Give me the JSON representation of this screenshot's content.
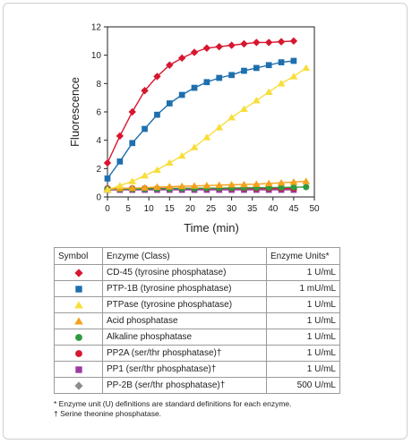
{
  "chart_data": {
    "type": "line",
    "xlabel": "Time (min)",
    "ylabel": "Fluorescence",
    "xlim": [
      0,
      50
    ],
    "ylim": [
      0,
      12
    ],
    "xticks": [
      0,
      5,
      10,
      15,
      20,
      25,
      30,
      35,
      40,
      45,
      50
    ],
    "yticks": [
      0,
      2,
      4,
      6,
      8,
      10,
      12
    ],
    "grid": false,
    "series": [
      {
        "name": "CD-45 (tyrosine phosphatase)",
        "color": "#d7172f",
        "marker": "diamond",
        "x": [
          0,
          3,
          6,
          9,
          12,
          15,
          18,
          21,
          24,
          27,
          30,
          33,
          36,
          39,
          42,
          45
        ],
        "y": [
          2.4,
          4.3,
          6.0,
          7.5,
          8.5,
          9.3,
          9.8,
          10.2,
          10.5,
          10.6,
          10.7,
          10.8,
          10.9,
          10.9,
          10.95,
          11.0
        ]
      },
      {
        "name": "PTP-1B (tyrosine phosphatase)",
        "color": "#1e6fae",
        "marker": "square",
        "x": [
          0,
          3,
          6,
          9,
          12,
          15,
          18,
          21,
          24,
          27,
          30,
          33,
          36,
          39,
          42,
          45
        ],
        "y": [
          1.3,
          2.5,
          3.8,
          4.8,
          5.8,
          6.6,
          7.2,
          7.7,
          8.1,
          8.4,
          8.6,
          8.9,
          9.1,
          9.3,
          9.5,
          9.6
        ]
      },
      {
        "name": "PTPase (tyrosine phosphatase)",
        "color": "#f7de3a",
        "marker": "triangle",
        "x": [
          0,
          3,
          6,
          9,
          12,
          15,
          18,
          21,
          24,
          27,
          30,
          33,
          36,
          39,
          42,
          45,
          48
        ],
        "y": [
          0.5,
          0.8,
          1.1,
          1.5,
          1.9,
          2.4,
          2.9,
          3.5,
          4.2,
          4.9,
          5.6,
          6.2,
          6.8,
          7.4,
          8.0,
          8.5,
          9.1
        ]
      },
      {
        "name": "Acid phosphatase",
        "color": "#f3a21c",
        "marker": "triangle",
        "x": [
          0,
          3,
          6,
          9,
          12,
          15,
          18,
          21,
          24,
          27,
          30,
          33,
          36,
          39,
          42,
          45,
          48
        ],
        "y": [
          0.55,
          0.6,
          0.62,
          0.65,
          0.7,
          0.72,
          0.75,
          0.78,
          0.8,
          0.83,
          0.86,
          0.88,
          0.9,
          0.95,
          1.0,
          1.05,
          1.1
        ]
      },
      {
        "name": "Alkaline phosphatase",
        "color": "#2e9a3e",
        "marker": "circle",
        "x": [
          0,
          3,
          6,
          9,
          12,
          15,
          18,
          21,
          24,
          27,
          30,
          33,
          36,
          39,
          42,
          45,
          48
        ],
        "y": [
          0.55,
          0.55,
          0.56,
          0.57,
          0.58,
          0.58,
          0.6,
          0.6,
          0.62,
          0.62,
          0.63,
          0.64,
          0.65,
          0.66,
          0.67,
          0.68,
          0.7
        ]
      },
      {
        "name": "PP2A (ser/thr phosphatase)†",
        "color": "#d7172f",
        "marker": "circle",
        "x": [
          0,
          3,
          6,
          9,
          12,
          15,
          18,
          21,
          24,
          27,
          30,
          33,
          36,
          39,
          42,
          45
        ],
        "y": [
          0.6,
          0.6,
          0.6,
          0.6,
          0.6,
          0.6,
          0.6,
          0.6,
          0.6,
          0.6,
          0.6,
          0.6,
          0.6,
          0.6,
          0.6,
          0.6
        ]
      },
      {
        "name": "PP1 (ser/thr phosphatase)†",
        "color": "#9b3aa3",
        "marker": "square",
        "x": [
          0,
          3,
          6,
          9,
          12,
          15,
          18,
          21,
          24,
          27,
          30,
          33,
          36,
          39,
          42,
          45
        ],
        "y": [
          0.5,
          0.5,
          0.5,
          0.5,
          0.5,
          0.5,
          0.5,
          0.5,
          0.5,
          0.5,
          0.5,
          0.5,
          0.5,
          0.5,
          0.5,
          0.5
        ]
      },
      {
        "name": "PP-2B (ser/thr phosphatase)†",
        "color": "#8c8c8c",
        "marker": "diamond",
        "x": [
          0,
          3,
          6,
          9,
          12,
          15,
          18,
          21,
          24,
          27,
          30,
          33,
          36,
          39,
          42,
          45
        ],
        "y": [
          0.55,
          0.55,
          0.55,
          0.55,
          0.55,
          0.55,
          0.55,
          0.55,
          0.55,
          0.55,
          0.55,
          0.55,
          0.55,
          0.55,
          0.55,
          0.55
        ]
      }
    ]
  },
  "legend_table": {
    "headers": {
      "symbol": "Symbol",
      "enzyme": "Enzyme (Class)",
      "units": "Enzyme Units*"
    },
    "rows": [
      {
        "enzyme": "CD-45 (tyrosine phosphatase)",
        "units": "1 U/mL",
        "color": "#d7172f",
        "marker": "diamond"
      },
      {
        "enzyme": "PTP-1B (tyrosine phosphatase)",
        "units": "1 mU/mL",
        "color": "#1e6fae",
        "marker": "square"
      },
      {
        "enzyme": "PTPase (tyrosine phosphatase)",
        "units": "1 U/mL",
        "color": "#f7de3a",
        "marker": "triangle"
      },
      {
        "enzyme": "Acid phosphatase",
        "units": "1 U/mL",
        "color": "#f3a21c",
        "marker": "triangle"
      },
      {
        "enzyme": "Alkaline phosphatase",
        "units": "1 U/mL",
        "color": "#2e9a3e",
        "marker": "circle"
      },
      {
        "enzyme": "PP2A (ser/thr phosphatase)†",
        "units": "1 U/mL",
        "color": "#d7172f",
        "marker": "circle"
      },
      {
        "enzyme": "PP1 (ser/thr phosphatase)†",
        "units": "1 U/mL",
        "color": "#9b3aa3",
        "marker": "square"
      },
      {
        "enzyme": "PP-2B (ser/thr phosphatase)†",
        "units": "500 U/mL",
        "color": "#8c8c8c",
        "marker": "diamond"
      }
    ]
  },
  "footnotes": {
    "units_note": "* Enzyme unit (U) definitions are standard definitions for each enzyme.",
    "dagger_note": "† Serine theonine phosphatase."
  }
}
